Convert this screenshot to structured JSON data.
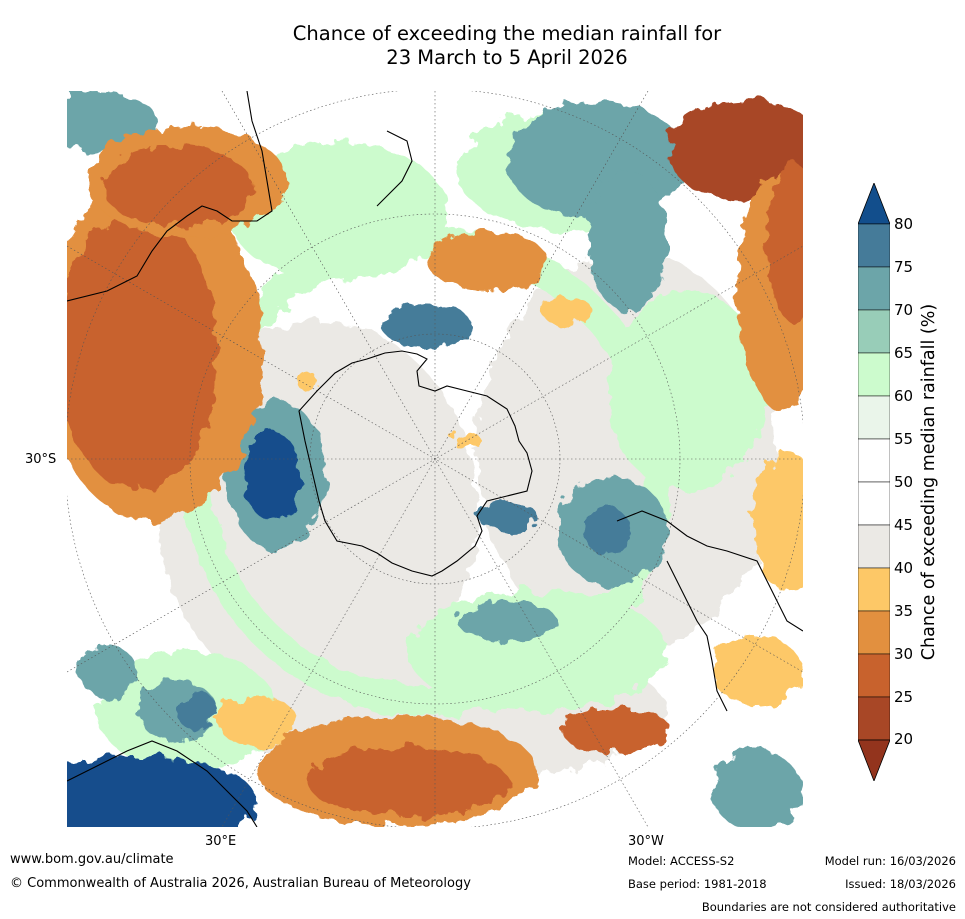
{
  "title_line1": "Chance of exceeding the median rainfall for",
  "title_line2": "23 March to 5 April 2026",
  "map": {
    "projection": "south-polar",
    "lat_label": "30°S",
    "lon_label_east": "30°E",
    "lon_label_west": "30°W"
  },
  "colorbar": {
    "label": "Chance of exceeding median rainfall (%)",
    "ticks": [
      "80",
      "75",
      "70",
      "65",
      "60",
      "55",
      "50",
      "45",
      "40",
      "35",
      "30",
      "25",
      "20"
    ],
    "colors": {
      "over": "#124e8c",
      "b75_80": "#457b99",
      "b70_75": "#6ca5a9",
      "b65_70": "#98cdb8",
      "b60_65": "#ccfbcd",
      "b55_60": "#eaf5ea",
      "b50_55": "#ffffff",
      "b45_50": "#ffffff",
      "b40_45": "#ebe9e5",
      "b35_40": "#fdc867",
      "b30_35": "#e2903f",
      "b25_30": "#c8622d",
      "b20_25": "#a84726",
      "under": "#93341d"
    }
  },
  "footer": {
    "website": "www.bom.gov.au/climate",
    "copyright": "© Commonwealth of Australia 2026, Australian Bureau of Meteorology",
    "model": "Model: ACCESS-S2",
    "base_period": "Base period: 1981-2018",
    "model_run": "Model run: 16/03/2026",
    "issued": "Issued: 18/03/2026",
    "boundaries": "Boundaries are not considered authoritative"
  }
}
